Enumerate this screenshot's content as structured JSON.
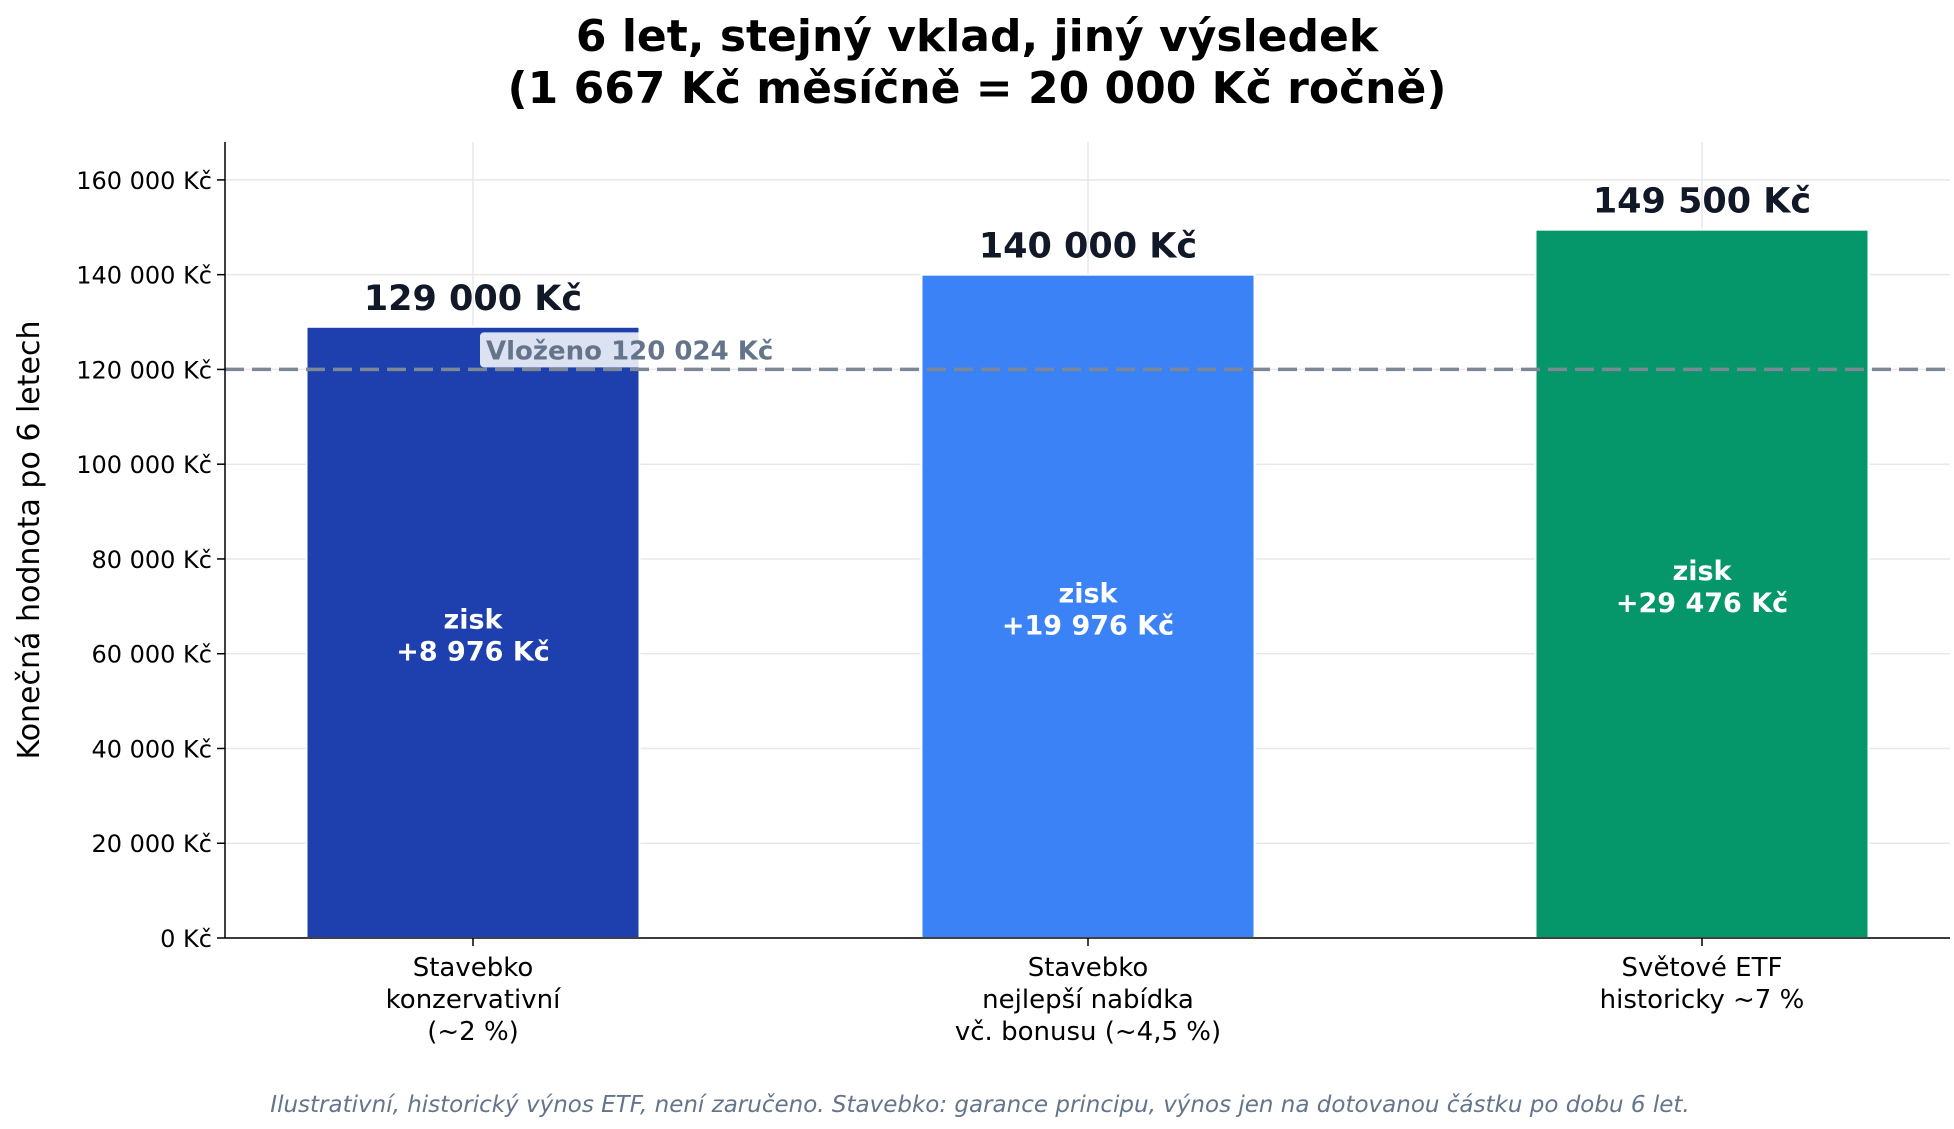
{
  "chart_data": {
    "type": "bar",
    "title_lines": [
      "6 let, stejný vklad, jiný výsledek",
      "(1 667 Kč měsíčně = 20 000 Kč ročně)"
    ],
    "ylabel": "Konečná hodnota po 6 letech",
    "xlabel": "",
    "ylim": [
      0,
      168000
    ],
    "y_ticks": [
      0,
      20000,
      40000,
      60000,
      80000,
      100000,
      120000,
      140000,
      160000
    ],
    "y_tick_labels": [
      "0 Kč",
      "20 000 Kč",
      "40 000 Kč",
      "60 000 Kč",
      "80 000 Kč",
      "100 000 Kč",
      "120 000 Kč",
      "140 000 Kč",
      "160 000 Kč"
    ],
    "grid": true,
    "categories": [
      [
        "Stavebko",
        "konzervativní",
        "(~2 %)"
      ],
      [
        "Stavebko",
        "nejlepší nabídka",
        "vč. bonusu (~4,5 %)"
      ],
      [
        "Světové ETF",
        "historicky ~7 %"
      ]
    ],
    "values": [
      129000,
      140000,
      149500
    ],
    "value_labels": [
      "129 000 Kč",
      "140 000 Kč",
      "149 500 Kč"
    ],
    "gain_labels": [
      [
        "zisk",
        "+8 976 Kč"
      ],
      [
        "zisk",
        "+19 976 Kč"
      ],
      [
        "zisk",
        "+29 476 Kč"
      ]
    ],
    "colors": [
      "#1e40af",
      "#3b82f6",
      "#059669"
    ],
    "reference_line": {
      "value": 120024,
      "label": "Vloženo 120 024 Kč",
      "color": "#7d8796"
    },
    "footnote": "Ilustrativní, historický výnos ETF, není zaručeno. Stavebko: garance principu, výnos jen na dotovanou částku po dobu 6 let."
  }
}
